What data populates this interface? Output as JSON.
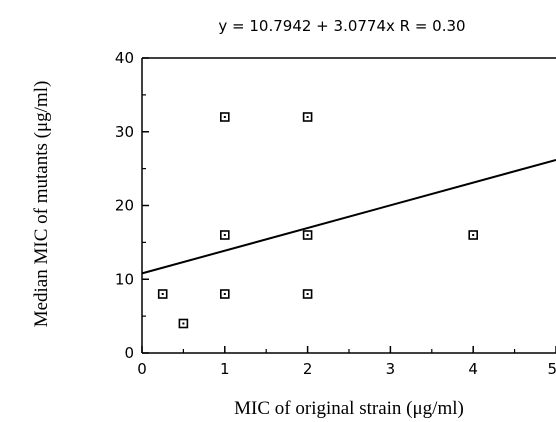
{
  "chart_data": {
    "type": "scatter",
    "title": "y = 10.7942 + 3.0774x   R = 0.30",
    "xlabel": "MIC of original strain (μg/ml)",
    "ylabel": "Median MIC of mutants (μg/ml)",
    "xlim": [
      0,
      5
    ],
    "ylim": [
      0,
      40
    ],
    "x_ticks": [
      0,
      1,
      2,
      3,
      4,
      5
    ],
    "y_ticks": [
      0,
      10,
      20,
      30,
      40
    ],
    "x_tick_labels": [
      "0",
      "1",
      "2",
      "3",
      "4",
      "5"
    ],
    "y_tick_labels": [
      "0",
      "10",
      "20",
      "30",
      "40"
    ],
    "points": [
      {
        "x": 0.25,
        "y": 8
      },
      {
        "x": 0.5,
        "y": 4
      },
      {
        "x": 1,
        "y": 8
      },
      {
        "x": 1,
        "y": 16
      },
      {
        "x": 1,
        "y": 32
      },
      {
        "x": 2,
        "y": 8
      },
      {
        "x": 2,
        "y": 16
      },
      {
        "x": 2,
        "y": 32
      },
      {
        "x": 4,
        "y": 16
      }
    ],
    "regression": {
      "intercept": 10.7942,
      "slope": 3.0774,
      "r": 0.3
    },
    "grid": false,
    "marker": "square-open",
    "colors": {
      "axis": "#000000",
      "marker": "#000000",
      "line": "#000000"
    }
  }
}
